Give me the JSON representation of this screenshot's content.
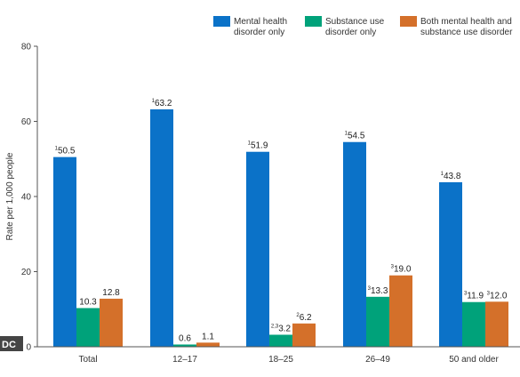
{
  "chart_data": {
    "type": "bar",
    "categories": [
      "Total",
      "12–17",
      "18–25",
      "26–49",
      "50 and older"
    ],
    "series": [
      {
        "name": "Mental health disorder only",
        "name_lines": [
          "Mental health",
          "disorder only"
        ],
        "color": "#0b72c8",
        "values": [
          50.5,
          63.2,
          51.9,
          54.5,
          43.8
        ],
        "labels": [
          "50.5",
          "63.2",
          "51.9",
          "54.5",
          "43.8"
        ],
        "notes": [
          "1",
          "1",
          "1",
          "1",
          "1"
        ]
      },
      {
        "name": "Substance use disorder only",
        "name_lines": [
          "Substance use",
          "disorder only"
        ],
        "color": "#00a27a",
        "values": [
          10.3,
          0.6,
          3.2,
          13.3,
          11.9
        ],
        "labels": [
          "10.3",
          "0.6",
          "3.2",
          "13.3",
          "11.9"
        ],
        "notes": [
          "",
          "",
          "2,3",
          "3",
          "3"
        ]
      },
      {
        "name": "Both mental health and substance use disorder",
        "name_lines": [
          "Both mental health and",
          "substance use disorder"
        ],
        "color": "#d4702a",
        "values": [
          12.8,
          1.1,
          6.2,
          19.0,
          12.0
        ],
        "labels": [
          "12.8",
          "1.1",
          "6.2",
          "19.0",
          "12.0"
        ],
        "notes": [
          "",
          "",
          "2",
          "3",
          "3"
        ]
      }
    ],
    "ylabel": "Rate per 1,000 people",
    "xlabel": "",
    "ylim": [
      0,
      80
    ],
    "yticks": [
      "0",
      "20",
      "40",
      "60",
      "80"
    ],
    "grid": false,
    "legend_position": "top-right"
  },
  "credit": "DC"
}
